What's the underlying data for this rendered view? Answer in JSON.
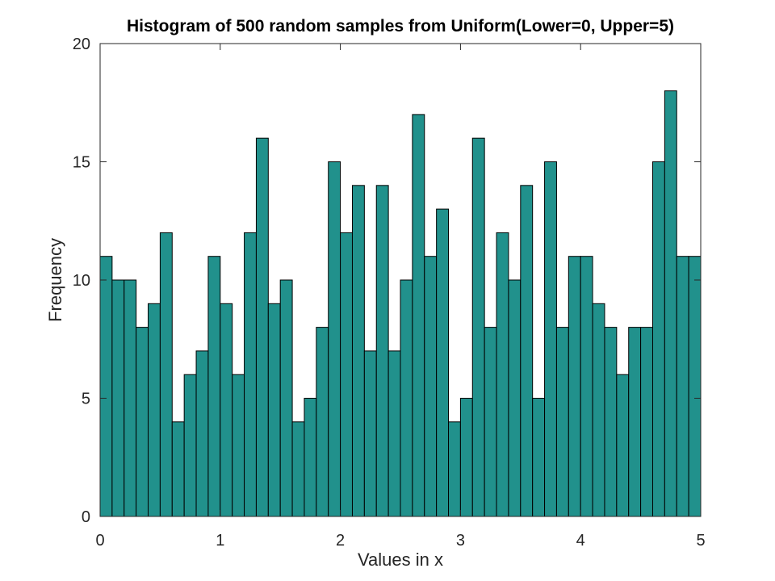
{
  "chart_data": {
    "type": "bar",
    "title": "Histogram of 500 random samples from Uniform(Lower=0, Upper=5)",
    "xlabel": "Values in x",
    "ylabel": "Frequency",
    "xlim": [
      0,
      5
    ],
    "ylim": [
      0,
      20
    ],
    "xticks": [
      0,
      1,
      2,
      3,
      4,
      5
    ],
    "yticks": [
      0,
      5,
      10,
      15,
      20
    ],
    "bin_edges_start": 0,
    "bin_width": 0.1,
    "values": [
      11,
      10,
      10,
      8,
      9,
      12,
      4,
      6,
      7,
      11,
      9,
      6,
      12,
      16,
      9,
      10,
      4,
      5,
      8,
      15,
      12,
      14,
      7,
      14,
      7,
      10,
      17,
      11,
      13,
      4,
      5,
      16,
      8,
      12,
      10,
      14,
      5,
      15,
      8,
      11,
      11,
      9,
      8,
      6,
      8,
      8,
      15,
      18,
      11,
      11
    ],
    "grid": false,
    "legend": "none",
    "bar_color": "#21918c",
    "edge_color": "#000000"
  }
}
